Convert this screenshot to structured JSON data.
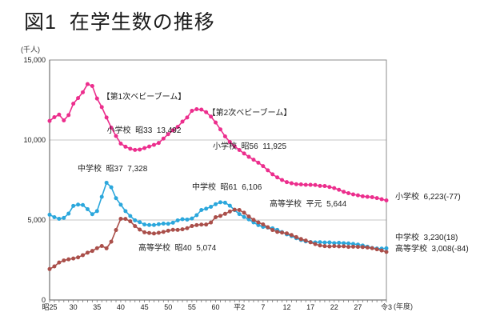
{
  "page": {
    "title": "図1  在学生数の推移"
  },
  "chart_data": {
    "type": "line",
    "title": "図1 在学生数の推移",
    "y_axis_unit": "(千人)",
    "x_axis_unit": "(年度)",
    "ylim": [
      0,
      15000
    ],
    "x_range": [
      1950,
      2021
    ],
    "x_interval_years": 1,
    "grid_values": [
      5000,
      10000
    ],
    "grid": "horizontal-only",
    "legend_position": "right-outside-as-end-labels",
    "y_ticks": [
      {
        "label": "0",
        "value": 0
      },
      {
        "label": "5,000",
        "value": 5000
      },
      {
        "label": "10,000",
        "value": 10000
      },
      {
        "label": "15,000",
        "value": 15000
      }
    ],
    "x_ticks": [
      {
        "label": "昭25",
        "year": 1950
      },
      {
        "label": "30",
        "year": 1955
      },
      {
        "label": "35",
        "year": 1960
      },
      {
        "label": "40",
        "year": 1965
      },
      {
        "label": "45",
        "year": 1970
      },
      {
        "label": "50",
        "year": 1975
      },
      {
        "label": "55",
        "year": 1980
      },
      {
        "label": "60",
        "year": 1985
      },
      {
        "label": "平2",
        "year": 1990
      },
      {
        "label": "7",
        "year": 1995
      },
      {
        "label": "12",
        "year": 2000
      },
      {
        "label": "17",
        "year": 2005
      },
      {
        "label": "22",
        "year": 2010
      },
      {
        "label": "27",
        "year": 2015
      },
      {
        "label": "令3",
        "year": 2021
      }
    ],
    "series": [
      {
        "name": "小学校",
        "color": "#EC2E8D",
        "values": [
          11191,
          11423,
          11588,
          11227,
          11556,
          12267,
          12620,
          12983,
          13492,
          13375,
          12591,
          12059,
          11407,
          10770,
          10250,
          9776,
          9584,
          9453,
          9383,
          9403,
          9493,
          9595,
          9696,
          9816,
          10089,
          10365,
          10609,
          10819,
          11147,
          11405,
          11827,
          11925,
          11902,
          11739,
          11464,
          11095,
          10665,
          10226,
          9872,
          9606,
          9373,
          9157,
          8947,
          8768,
          8583,
          8370,
          8106,
          7855,
          7663,
          7500,
          7366,
          7297,
          7239,
          7226,
          7201,
          7197,
          7187,
          7132,
          7122,
          7064,
          6993,
          6887,
          6765,
          6677,
          6600,
          6543,
          6483,
          6448,
          6428,
          6369,
          6300,
          6223
        ]
      },
      {
        "name": "中学校",
        "color": "#2BA7DC",
        "values": [
          5333,
          5177,
          5076,
          5133,
          5397,
          5884,
          5962,
          5938,
          5678,
          5363,
          5555,
          6452,
          7328,
          7046,
          6361,
          5957,
          5556,
          5249,
          4979,
          4865,
          4717,
          4687,
          4688,
          4738,
          4777,
          4762,
          4833,
          4977,
          5048,
          5028,
          5094,
          5299,
          5624,
          5706,
          5828,
          5990,
          6106,
          6081,
          5896,
          5619,
          5369,
          5188,
          5036,
          4850,
          4681,
          4570,
          4527,
          4481,
          4380,
          4243,
          4104,
          3992,
          3863,
          3748,
          3663,
          3626,
          3602,
          3615,
          3593,
          3600,
          3558,
          3574,
          3553,
          3536,
          3504,
          3465,
          3406,
          3333,
          3252,
          3218,
          3212,
          3230
        ]
      },
      {
        "name": "高等学校",
        "color": "#AA4F4A",
        "values": [
          1935,
          2099,
          2342,
          2471,
          2541,
          2592,
          2664,
          2803,
          2956,
          3066,
          3239,
          3376,
          3231,
          3646,
          4372,
          5074,
          5067,
          4920,
          4617,
          4402,
          4232,
          4190,
          4155,
          4201,
          4257,
          4333,
          4389,
          4382,
          4418,
          4487,
          4622,
          4683,
          4714,
          4716,
          4843,
          5177,
          5259,
          5385,
          5533,
          5644,
          5623,
          5455,
          5218,
          5010,
          4850,
          4724,
          4547,
          4372,
          4258,
          4212,
          4165,
          4062,
          3929,
          3810,
          3719,
          3605,
          3495,
          3406,
          3366,
          3347,
          3369,
          3349,
          3356,
          3320,
          3334,
          3319,
          3309,
          3280,
          3236,
          3168,
          3092,
          3008
        ]
      }
    ],
    "annotations": [
      {
        "id": "first-baby-boom",
        "lines": [
          "【第1次ベビーブーム】",
          "小学校  昭33  13,492"
        ],
        "peak_year": 1958,
        "peak_value": 13492
      },
      {
        "id": "second-baby-boom",
        "lines": [
          "【第2次ベビーブーム】",
          "小学校  昭56  11,925"
        ],
        "peak_year": 1981,
        "peak_value": 11925
      },
      {
        "id": "jhs-peak-1",
        "text": "中学校  昭37  7,328",
        "peak_year": 1962,
        "peak_value": 7328
      },
      {
        "id": "jhs-peak-2",
        "text": "中学校  昭61  6,106",
        "peak_year": 1986,
        "peak_value": 6106
      },
      {
        "id": "hs-peak-2",
        "text": "高等学校  平元  5,644",
        "peak_year": 1989,
        "peak_value": 5644
      },
      {
        "id": "hs-peak-1",
        "text": "高等学校  昭40  5,074",
        "peak_year": 1965,
        "peak_value": 5074
      }
    ],
    "end_labels": [
      {
        "series": "小学校",
        "text": "小学校  6,223(-77)",
        "value": 6223,
        "change": -77
      },
      {
        "series": "中学校",
        "text": "中学校  3,230(18)",
        "value": 3230,
        "change": 18
      },
      {
        "series": "高等学校",
        "text": "高等学校  3,008(-84)",
        "value": 3008,
        "change": -84
      }
    ]
  }
}
